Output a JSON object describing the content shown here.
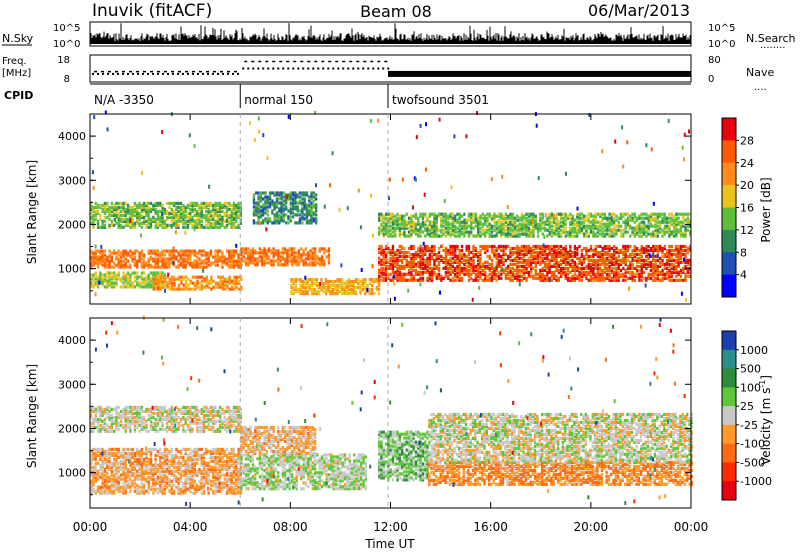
{
  "header": {
    "station": "Inuvik (fitACF)",
    "beam": "Beam 08",
    "date": "06/Mar/2013"
  },
  "noise_panel": {
    "left_label": "N.Sky",
    "right_label": "N.Search",
    "right_marker": "........",
    "tick_top": "10^5",
    "tick_bottom": "10^0"
  },
  "freq_panel": {
    "label_line1": "Freq.",
    "label_line2": "[MHz]",
    "ticks_left": [
      "18",
      "8"
    ],
    "ticks_right": [
      "80",
      "0"
    ],
    "right_label": "Nave",
    "right_marker": "....",
    "frequency_mhz": [
      11,
      13,
      11
    ],
    "nave": [
      30,
      60,
      18
    ]
  },
  "cpid": {
    "label": "CPID",
    "segments": [
      {
        "text": "N/A -3350",
        "start_h": 0,
        "end_h": 6
      },
      {
        "text": "normal 150",
        "start_h": 6,
        "end_h": 11.9
      },
      {
        "text": "twofsound 3501",
        "start_h": 11.9,
        "end_h": 24
      }
    ]
  },
  "x_axis": {
    "label": "Time UT",
    "ticks": [
      "00:00",
      "04:00",
      "08:00",
      "12:00",
      "16:00",
      "20:00",
      "00:00"
    ],
    "range_h": [
      0,
      24
    ]
  },
  "y_axis": {
    "label": "Slant Range [km]",
    "ticks": [
      "1000",
      "2000",
      "3000",
      "4000"
    ],
    "range_km": [
      200,
      4500
    ]
  },
  "power_bar": {
    "label": "Power [dB]",
    "ticks": [
      "4",
      "8",
      "12",
      "16",
      "20",
      "24",
      "28"
    ],
    "colors": [
      "#0000ff",
      "#1e4fb4",
      "#2e8b57",
      "#5fbf3a",
      "#e8c51e",
      "#ff8c1a",
      "#ff5a00",
      "#e8000e"
    ]
  },
  "velocity_bar": {
    "label_text": "Velocity [m s",
    "label_sup": "-1",
    "label_close": "]",
    "ticks": [
      "1000",
      "500",
      "100",
      "25",
      "-25",
      "-100",
      "-500",
      "-1000"
    ],
    "colors": [
      "#1c3fb0",
      "#2a8f8a",
      "#2e8b3a",
      "#5fc63a",
      "#c8c8c8",
      "#ff9a2a",
      "#ff6a12",
      "#ff2a00",
      "#e60012"
    ]
  },
  "chart_data": {
    "type": "heatmap",
    "panels": [
      {
        "name": "Power [dB]",
        "zlim": [
          0,
          32
        ],
        "scatter_bands": [
          {
            "start_h": 0.0,
            "end_h": 6.0,
            "range_km": [
              1000,
              1400
            ],
            "mean": 24
          },
          {
            "start_h": 0.0,
            "end_h": 3.0,
            "range_km": [
              550,
              900
            ],
            "mean": 16
          },
          {
            "start_h": 0.0,
            "end_h": 6.0,
            "range_km": [
              1900,
              2450
            ],
            "mean": 14
          },
          {
            "start_h": 2.5,
            "end_h": 6.0,
            "range_km": [
              500,
              800
            ],
            "mean": 22
          },
          {
            "start_h": 6.0,
            "end_h": 9.5,
            "range_km": [
              1050,
              1450
            ],
            "mean": 24
          },
          {
            "start_h": 6.5,
            "end_h": 9.0,
            "range_km": [
              2000,
              2700
            ],
            "mean": 10
          },
          {
            "start_h": 8.0,
            "end_h": 11.5,
            "range_km": [
              400,
              750
            ],
            "mean": 20
          },
          {
            "start_h": 11.5,
            "end_h": 24.0,
            "range_km": [
              700,
              1500
            ],
            "mean": 27
          },
          {
            "start_h": 11.5,
            "end_h": 24.0,
            "range_km": [
              1700,
              2200
            ],
            "mean": 14
          }
        ]
      },
      {
        "name": "Velocity [m s-1]",
        "zlim": [
          -1000,
          1000
        ],
        "scatter_bands": [
          {
            "start_h": 0.0,
            "end_h": 6.0,
            "range_km": [
              500,
              1500
            ],
            "mean": -200
          },
          {
            "start_h": 0.0,
            "end_h": 6.0,
            "range_km": [
              1900,
              2450
            ],
            "mean": 0
          },
          {
            "start_h": 6.0,
            "end_h": 11.0,
            "range_km": [
              600,
              1400
            ],
            "mean": 80
          },
          {
            "start_h": 6.0,
            "end_h": 9.0,
            "range_km": [
              1400,
              2000
            ],
            "mean": -150
          },
          {
            "start_h": 11.5,
            "end_h": 13.5,
            "range_km": [
              800,
              1900
            ],
            "mean": 200
          },
          {
            "start_h": 13.5,
            "end_h": 24.0,
            "range_km": [
              700,
              1200
            ],
            "mean": -300
          },
          {
            "start_h": 13.5,
            "end_h": 24.0,
            "range_km": [
              1200,
              2300
            ],
            "mean": 0
          }
        ]
      }
    ]
  }
}
